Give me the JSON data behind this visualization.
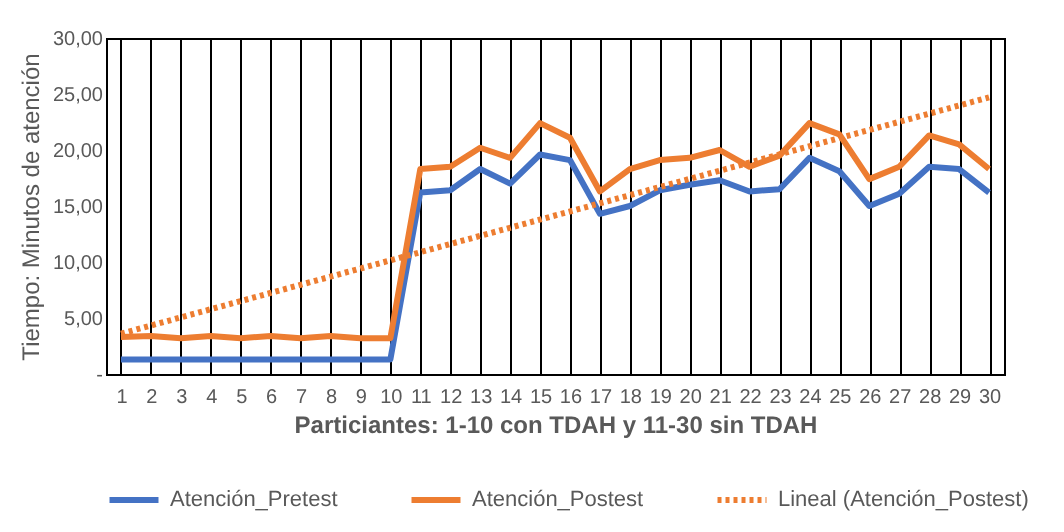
{
  "chart_data": {
    "type": "line",
    "xlabel": "Particiantes: 1-10 con TDAH y 11-30 sin TDAH",
    "ylabel": "Tiempo: Minutos de atención",
    "x": [
      1,
      2,
      3,
      4,
      5,
      6,
      7,
      8,
      9,
      10,
      11,
      12,
      13,
      14,
      15,
      16,
      17,
      18,
      19,
      20,
      21,
      22,
      23,
      24,
      25,
      26,
      27,
      28,
      29,
      30
    ],
    "xlim": [
      0.5,
      30.5
    ],
    "xticks": [
      1,
      2,
      3,
      4,
      5,
      6,
      7,
      8,
      9,
      10,
      11,
      12,
      13,
      14,
      15,
      16,
      17,
      18,
      19,
      20,
      21,
      22,
      23,
      24,
      25,
      26,
      27,
      28,
      29,
      30
    ],
    "ylim": [
      0,
      30
    ],
    "yticks": [
      {
        "value": 0,
        "label": "-"
      },
      {
        "value": 5,
        "label": "5,00"
      },
      {
        "value": 10,
        "label": "10,00"
      },
      {
        "value": 15,
        "label": "15,00"
      },
      {
        "value": 20,
        "label": "20,00"
      },
      {
        "value": 25,
        "label": "25,00"
      },
      {
        "value": 30,
        "label": "30,00"
      }
    ],
    "grid": "x",
    "legend": "bottom",
    "marker": "none",
    "series": [
      {
        "name": "Atención_Pretest",
        "color": "#4472c4",
        "line_style": "solid",
        "values": [
          1.3,
          1.3,
          1.3,
          1.3,
          1.3,
          1.3,
          1.3,
          1.3,
          1.3,
          1.3,
          16.2,
          16.4,
          18.3,
          17.0,
          19.6,
          19.1,
          14.3,
          15.0,
          16.4,
          16.9,
          17.3,
          16.3,
          16.5,
          19.3,
          18.1,
          15.0,
          16.1,
          18.5,
          18.3,
          16.2
        ]
      },
      {
        "name": "Atención_Postest",
        "color": "#ed7d31",
        "line_style": "solid",
        "values": [
          3.3,
          3.4,
          3.2,
          3.4,
          3.2,
          3.4,
          3.2,
          3.4,
          3.2,
          3.2,
          18.3,
          18.5,
          20.2,
          19.3,
          22.4,
          21.1,
          16.3,
          18.3,
          19.1,
          19.3,
          20.0,
          18.5,
          19.5,
          22.4,
          21.4,
          17.4,
          18.5,
          21.3,
          20.5,
          18.3
        ]
      },
      {
        "name": "Lineal (Atención_Postest)",
        "type": "line",
        "color": "#ed7d31",
        "line_style": "dotted",
        "x": [
          1,
          30
        ],
        "values": [
          3.6,
          24.7
        ]
      }
    ]
  }
}
